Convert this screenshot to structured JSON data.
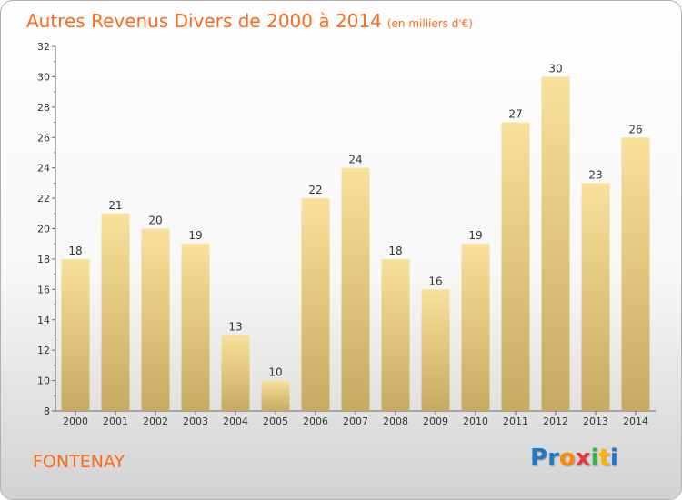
{
  "title": "Autres Revenus Divers de 2000 à 2014",
  "subtitle": "(en milliers d'€)",
  "commune": "FONTENAY",
  "logo": {
    "letters": [
      "P",
      "r",
      "o",
      "x",
      "i",
      "t",
      "i"
    ],
    "colors": [
      "#1f78c8",
      "#1f78c8",
      "#ff8a00",
      "#e53935",
      "#39b54a",
      "#ffb300",
      "#1f78c8"
    ]
  },
  "colors": {
    "title": "#ff6a1a",
    "bar_light": "#f8e19a",
    "bar_dark": "#c7aa62"
  },
  "chart_data": {
    "type": "bar",
    "title": "Autres Revenus Divers de 2000 à 2014",
    "subtitle": "(en milliers d'€)",
    "xlabel": "",
    "ylabel": "",
    "categories": [
      "2000",
      "2001",
      "2002",
      "2003",
      "2004",
      "2005",
      "2006",
      "2007",
      "2008",
      "2009",
      "2010",
      "2011",
      "2012",
      "2013",
      "2014"
    ],
    "values": [
      18,
      21,
      20,
      19,
      13,
      10,
      22,
      24,
      18,
      16,
      19,
      27,
      30,
      23,
      26
    ],
    "ylim": [
      8,
      32
    ],
    "yticks": [
      8,
      10,
      12,
      14,
      16,
      18,
      20,
      22,
      24,
      26,
      28,
      30,
      32
    ],
    "grid": false,
    "legend": "none"
  }
}
